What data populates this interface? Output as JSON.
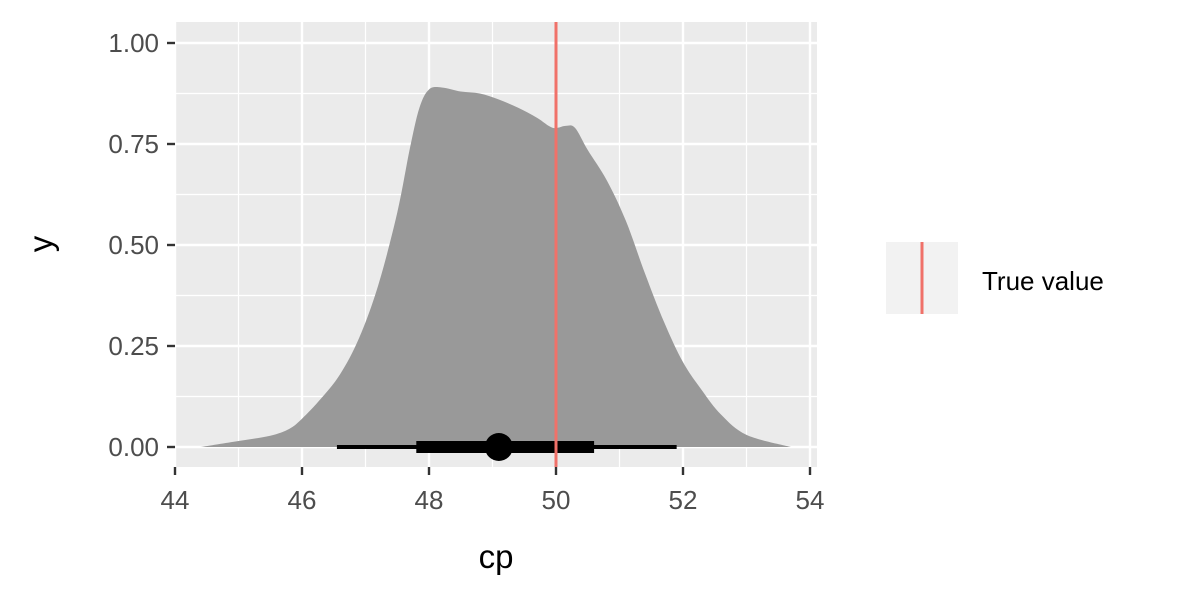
{
  "chart_data": {
    "type": "area",
    "xlabel": "cp",
    "ylabel": "y",
    "xlim": [
      44,
      54
    ],
    "ylim": [
      0,
      1
    ],
    "x_ticks": [
      44,
      46,
      48,
      50,
      52,
      54
    ],
    "y_ticks": [
      0,
      0.25,
      0.5,
      0.75,
      1
    ],
    "x_tick_labels": [
      "44",
      "46",
      "48",
      "50",
      "52",
      "54"
    ],
    "y_tick_labels": [
      "0.00",
      "0.25",
      "0.50",
      "0.75",
      "1.00"
    ],
    "grid": true,
    "legend": {
      "position": "right",
      "entries": [
        {
          "label": "True value",
          "color": "#f07169"
        }
      ]
    },
    "density": {
      "fill": "#999999",
      "x": [
        44.4,
        45.0,
        45.5,
        45.8,
        46.0,
        46.3,
        46.6,
        46.9,
        47.2,
        47.5,
        47.7,
        47.85,
        48.0,
        48.2,
        48.5,
        48.8,
        49.1,
        49.4,
        49.7,
        49.95,
        50.15,
        50.3,
        50.5,
        50.8,
        51.1,
        51.4,
        51.7,
        52.0,
        52.3,
        52.6,
        53.0,
        53.7
      ],
      "y": [
        0.0,
        0.015,
        0.028,
        0.045,
        0.07,
        0.12,
        0.18,
        0.27,
        0.4,
        0.58,
        0.74,
        0.84,
        0.885,
        0.89,
        0.88,
        0.875,
        0.86,
        0.84,
        0.815,
        0.79,
        0.795,
        0.79,
        0.735,
        0.66,
        0.56,
        0.43,
        0.31,
        0.21,
        0.14,
        0.08,
        0.03,
        0.0
      ]
    },
    "summary": {
      "point": 49.1,
      "inner_interval": [
        47.8,
        50.6
      ],
      "outer_interval": [
        46.55,
        51.9
      ],
      "y": 0
    },
    "reference_line": {
      "x": 50,
      "color": "#f07169",
      "name": "True value"
    }
  }
}
